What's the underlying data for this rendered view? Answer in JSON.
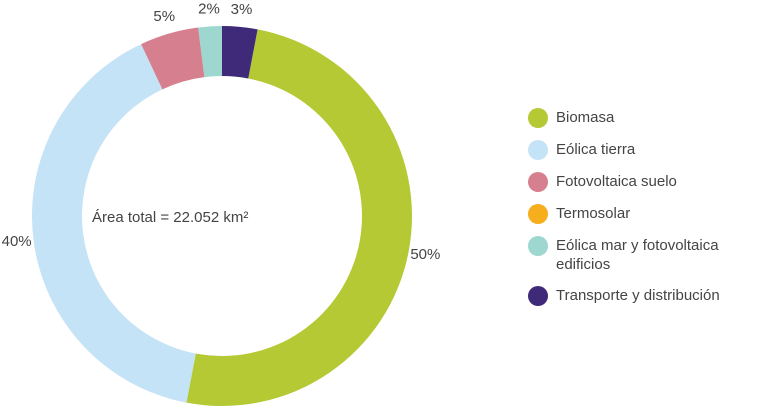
{
  "chart_data": {
    "type": "pie",
    "center_label": "Área total = 22.052 km²",
    "categories": [
      "Biomasa",
      "Eólica tierra",
      "Fotovoltaica suelo",
      "Termosolar",
      "Eólica mar y fotovoltaica edificios",
      "Transporte y distribución"
    ],
    "values": [
      50,
      40,
      5,
      0,
      2,
      3
    ],
    "value_labels": [
      "50%",
      "40%",
      "5%",
      null,
      "2%",
      "3%"
    ],
    "colors": [
      "#b5c934",
      "#c5e3f6",
      "#d6808f",
      "#f6ae1c",
      "#9dd7cf",
      "#3e2a78"
    ],
    "legend": "right"
  }
}
